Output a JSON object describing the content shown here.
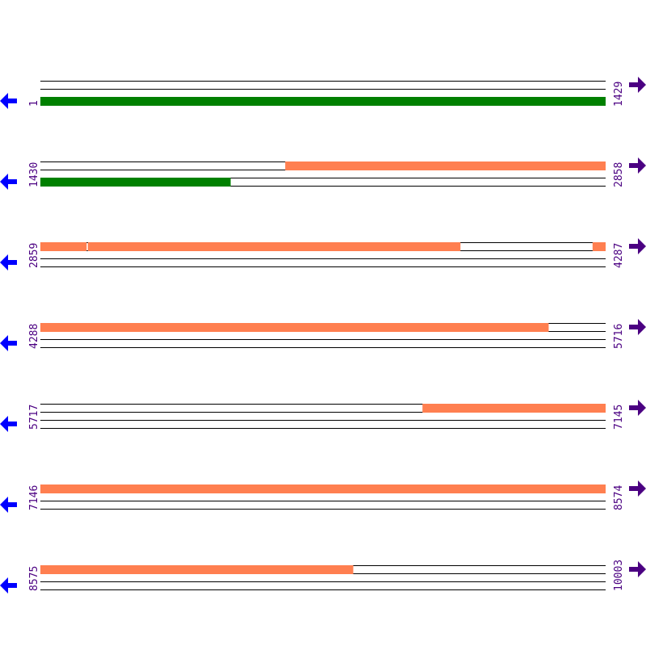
{
  "sequence": {
    "length": 10003,
    "bp_per_row": 1429
  },
  "colors": {
    "green": "#008000",
    "orange": "#ff7f50",
    "label": "#4b0082",
    "left_arrow": "#0000ff",
    "right_arrow": "#4b0082",
    "line": "#000000"
  },
  "icons": {
    "left": "arrow-left-icon",
    "right": "arrow-right-icon"
  },
  "rows": [
    {
      "start": "1",
      "end": "1429",
      "s": 1,
      "e": 1429,
      "features": [
        {
          "track": 2,
          "from": 1,
          "to": 1429,
          "color": "green"
        }
      ]
    },
    {
      "start": "1430",
      "end": "2858",
      "s": 1430,
      "e": 2858,
      "features": [
        {
          "track": 0,
          "from": 2049,
          "to": 2858,
          "color": "orange"
        },
        {
          "track": 2,
          "from": 1430,
          "to": 1910,
          "color": "green"
        }
      ]
    },
    {
      "start": "2859",
      "end": "4287",
      "s": 2859,
      "e": 4287,
      "features": [
        {
          "track": 0,
          "from": 2859,
          "to": 2975,
          "color": "orange"
        },
        {
          "track": 0,
          "from": 2979,
          "to": 3920,
          "color": "orange"
        },
        {
          "track": 0,
          "from": 4255,
          "to": 4287,
          "color": "orange"
        }
      ]
    },
    {
      "start": "4288",
      "end": "5716",
      "s": 4288,
      "e": 5716,
      "features": [
        {
          "track": 0,
          "from": 4288,
          "to": 5572,
          "color": "orange"
        }
      ]
    },
    {
      "start": "5717",
      "end": "7145",
      "s": 5717,
      "e": 7145,
      "features": [
        {
          "track": 0,
          "from": 6683,
          "to": 7145,
          "color": "orange"
        }
      ]
    },
    {
      "start": "7146",
      "end": "8574",
      "s": 7146,
      "e": 8574,
      "features": [
        {
          "track": 0,
          "from": 7146,
          "to": 8574,
          "color": "orange"
        }
      ]
    },
    {
      "start": "8575",
      "end": "10003",
      "s": 8575,
      "e": 10003,
      "features": [
        {
          "track": 0,
          "from": 8575,
          "to": 9365,
          "color": "orange"
        }
      ]
    }
  ]
}
